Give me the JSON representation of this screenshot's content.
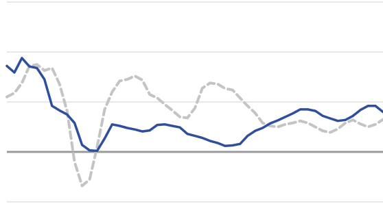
{
  "chart_data": {
    "type": "line",
    "title": "",
    "xlabel": "",
    "ylabel": "",
    "ylim": [
      -1,
      3
    ],
    "grid": true,
    "gridlines_y": [
      -1,
      0,
      1,
      2,
      3
    ],
    "zero_line": 0,
    "legend": "none",
    "x": [
      0,
      2,
      4,
      6,
      8,
      10,
      12,
      14,
      16,
      18,
      20,
      22,
      24,
      26,
      28,
      30,
      32,
      34,
      36,
      38,
      40,
      42,
      44,
      46,
      48,
      50,
      52,
      54,
      56,
      58,
      60,
      62,
      64,
      66,
      68,
      70,
      72,
      74,
      76,
      78,
      80,
      82,
      84,
      86,
      88,
      90,
      92,
      94,
      96,
      98,
      100
    ],
    "series": [
      {
        "color": "#2e4f9e",
        "style": "solid",
        "values": [
          1.72,
          1.59,
          1.88,
          1.71,
          1.68,
          1.45,
          0.92,
          0.83,
          0.75,
          0.58,
          0.14,
          0.03,
          0.02,
          0.27,
          0.55,
          0.52,
          0.48,
          0.45,
          0.41,
          0.43,
          0.54,
          0.55,
          0.52,
          0.49,
          0.36,
          0.32,
          0.28,
          0.22,
          0.18,
          0.12,
          0.13,
          0.16,
          0.32,
          0.42,
          0.48,
          0.57,
          0.63,
          0.7,
          0.77,
          0.85,
          0.85,
          0.82,
          0.72,
          0.67,
          0.62,
          0.64,
          0.72,
          0.84,
          0.92,
          0.92,
          0.8
        ]
      },
      {
        "color": "#c4c4c4",
        "style": "dashed",
        "values": [
          1.1,
          1.18,
          1.38,
          1.72,
          1.75,
          1.63,
          1.68,
          1.36,
          0.82,
          -0.2,
          -0.68,
          -0.55,
          0.1,
          0.85,
          1.2,
          1.42,
          1.45,
          1.52,
          1.44,
          1.15,
          1.08,
          0.95,
          0.83,
          0.7,
          0.68,
          0.88,
          1.28,
          1.38,
          1.36,
          1.27,
          1.24,
          1.08,
          0.92,
          0.78,
          0.58,
          0.52,
          0.5,
          0.55,
          0.58,
          0.62,
          0.58,
          0.5,
          0.42,
          0.39,
          0.46,
          0.58,
          0.64,
          0.56,
          0.5,
          0.55,
          0.65
        ]
      }
    ]
  }
}
